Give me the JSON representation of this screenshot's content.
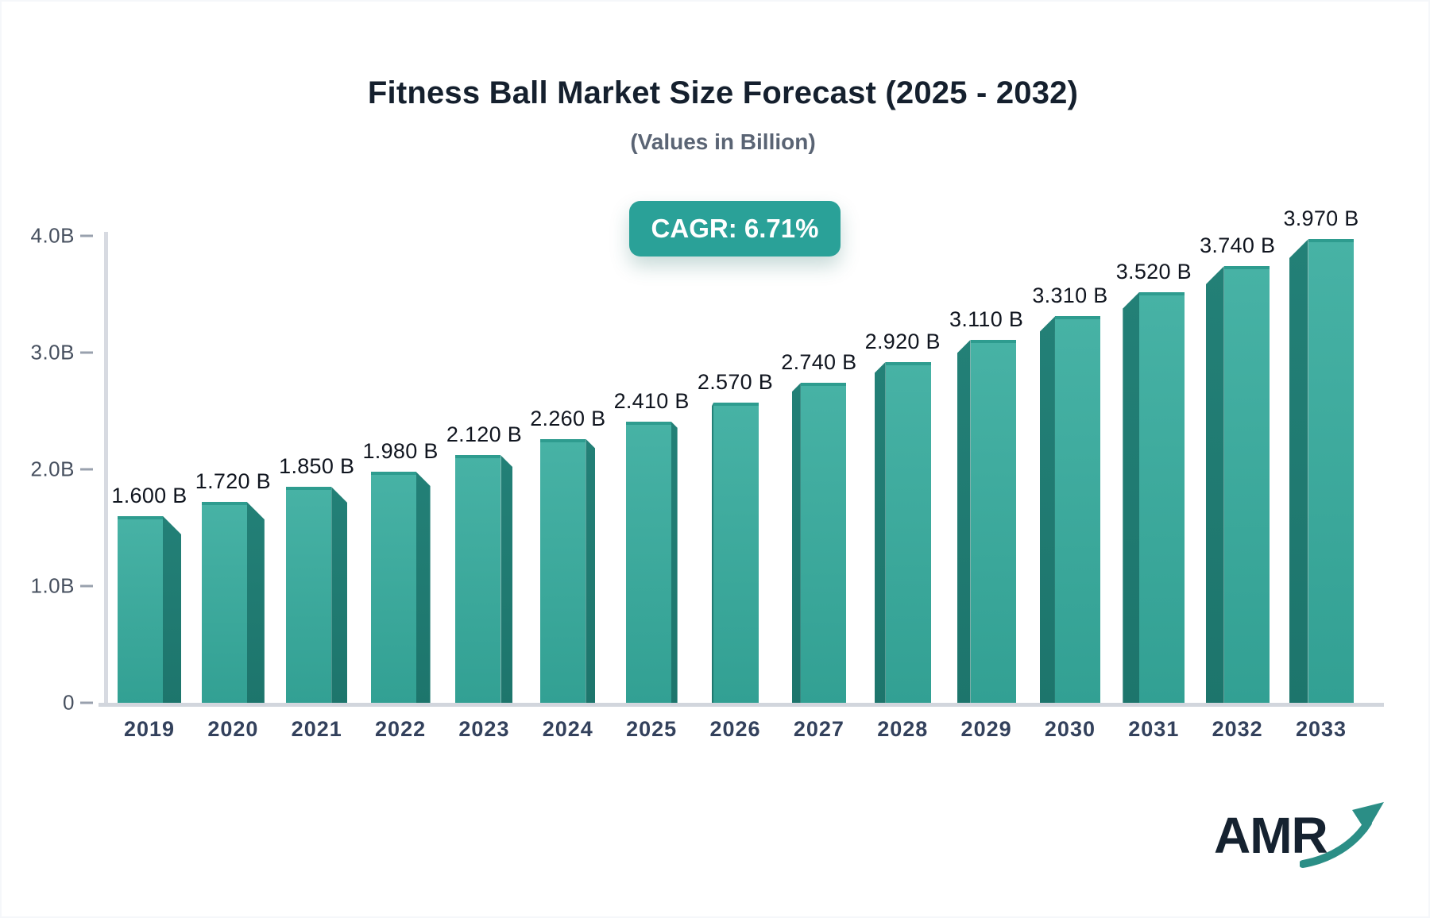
{
  "chart_data": {
    "type": "bar",
    "title": "Fitness Ball Market Size Forecast (2025 - 2032)",
    "subtitle": "(Values in Billion)",
    "cagr_label": "CAGR: 6.71%",
    "categories": [
      "2019",
      "2020",
      "2021",
      "2022",
      "2023",
      "2024",
      "2025",
      "2026",
      "2027",
      "2028",
      "2029",
      "2030",
      "2031",
      "2032",
      "2033"
    ],
    "values": [
      1.6,
      1.72,
      1.85,
      1.98,
      2.12,
      2.26,
      2.41,
      2.57,
      2.74,
      2.92,
      3.11,
      3.31,
      3.52,
      3.74,
      3.97
    ],
    "value_labels": [
      "1.600 B",
      "1.720 B",
      "1.850 B",
      "1.980 B",
      "2.120 B",
      "2.260 B",
      "2.410 B",
      "2.570 B",
      "2.740 B",
      "2.920 B",
      "3.110 B",
      "3.310 B",
      "3.520 B",
      "3.740 B",
      "3.970 B"
    ],
    "y_ticks": [
      {
        "label": "4.0B",
        "value": 4.0
      },
      {
        "label": "3.0B",
        "value": 3.0
      },
      {
        "label": "2.0B",
        "value": 2.0
      },
      {
        "label": "1.0B",
        "value": 1.0
      },
      {
        "label": "0",
        "value": 0.0
      }
    ],
    "ylim": [
      0,
      4.0
    ],
    "grid": false,
    "legend_position": "none",
    "bar_style": "3d-perspective-teal"
  },
  "logo": {
    "text": "AMR",
    "arrow_icon": "growth-arrow-icon"
  },
  "colors": {
    "badge": "#2aa198",
    "bar_face_top": "#47b2a5",
    "bar_face_bottom": "#32a093",
    "bar_top_edge": "#2e9c8f",
    "bar_side_top": "#238077",
    "bar_side_bottom": "#1d756c",
    "title": "#15202e",
    "subtitle": "#5a6474",
    "axis_label": "#47505f",
    "year_label": "#33415c",
    "value_label": "#10151f",
    "logo_text": "#152230",
    "logo_arrow": "#2b8e86"
  }
}
